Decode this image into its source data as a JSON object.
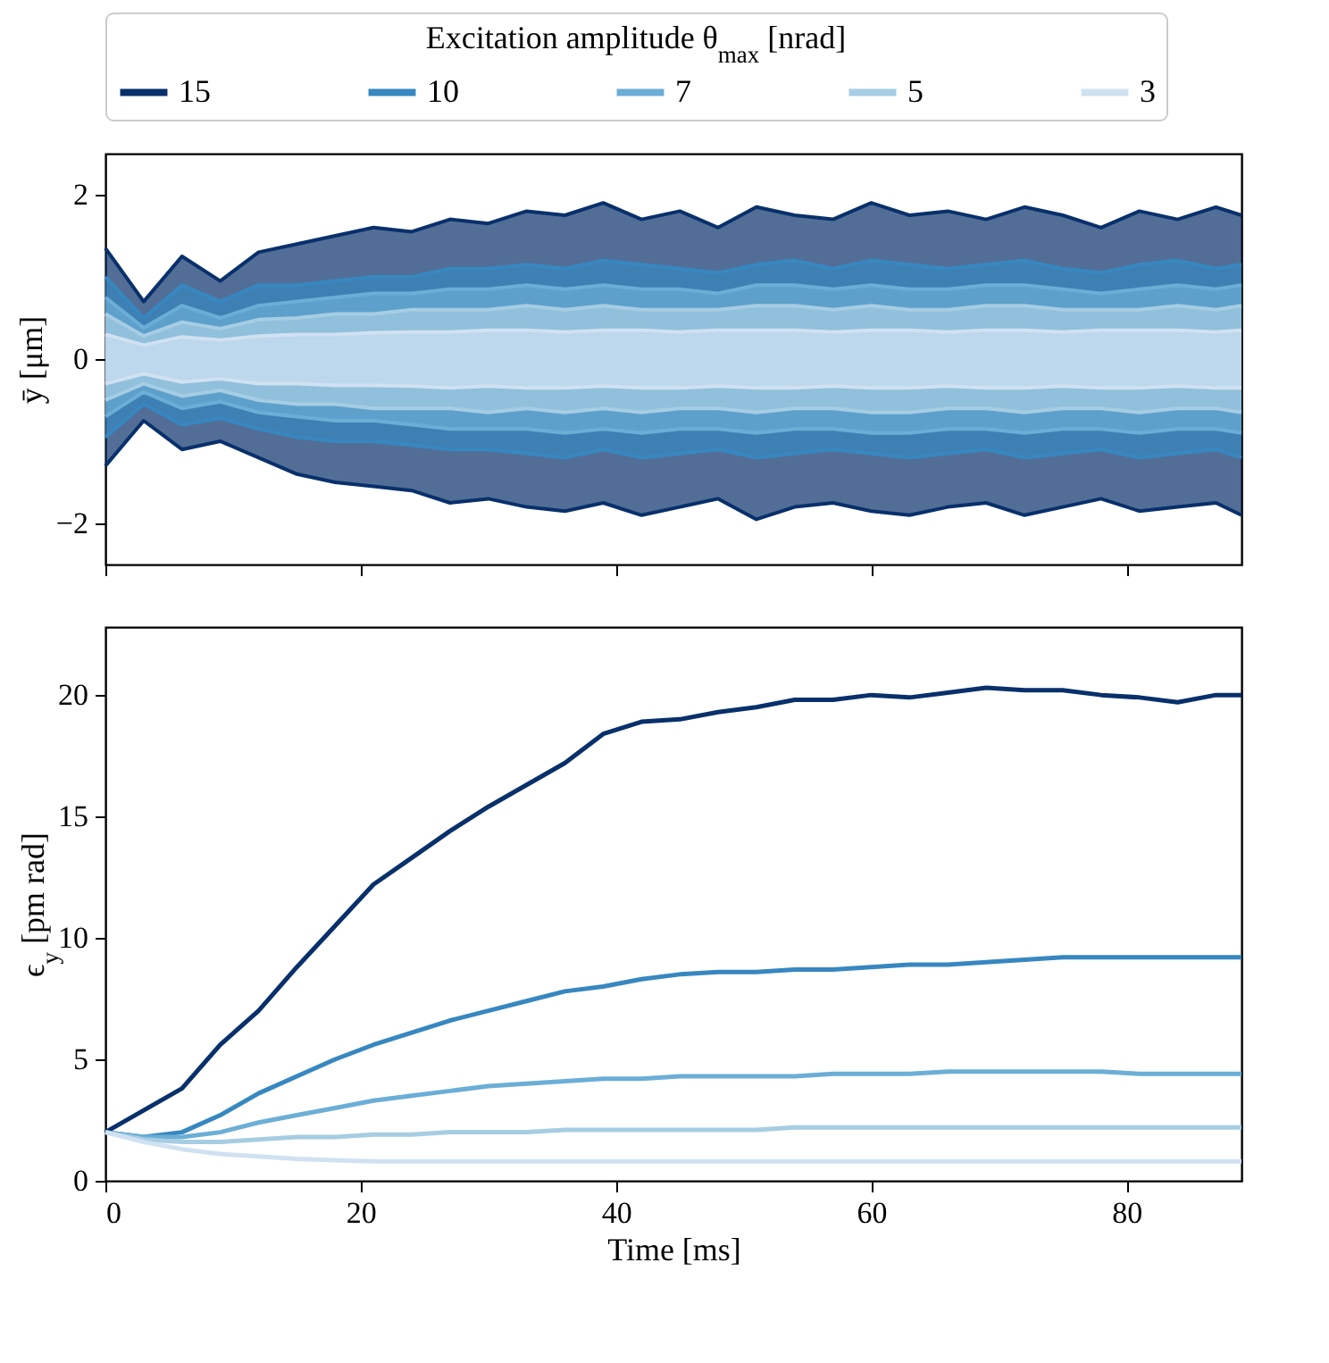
{
  "chart_data": [
    {
      "type": "area",
      "ylabel": "ȳ [μm]",
      "legend_title": "Excitation amplitude θ$_{max}$ [nrad]",
      "legend": "top",
      "grid": false,
      "tick_labels": "y",
      "x": [
        0,
        3,
        6,
        9,
        12,
        15,
        18,
        21,
        24,
        27,
        30,
        33,
        36,
        39,
        42,
        45,
        48,
        51,
        54,
        57,
        60,
        63,
        66,
        69,
        72,
        75,
        78,
        81,
        84,
        87,
        89
      ],
      "xlim": [
        0,
        89
      ],
      "xticks": [
        0,
        20,
        40,
        60,
        80
      ],
      "ylim": [
        -2.5,
        2.5
      ],
      "yticks": [
        -2,
        0,
        2
      ],
      "series": [
        {
          "name": "15",
          "color": "#08306b",
          "values": [
            1.35,
            0.7,
            1.25,
            0.95,
            1.3,
            1.4,
            1.5,
            1.6,
            1.55,
            1.7,
            1.65,
            1.8,
            1.75,
            1.9,
            1.7,
            1.8,
            1.6,
            1.85,
            1.75,
            1.7,
            1.9,
            1.75,
            1.8,
            1.7,
            1.85,
            1.75,
            1.6,
            1.8,
            1.7,
            1.85,
            1.75
          ]
        },
        {
          "color": "#08306b",
          "values": [
            -1.3,
            -0.75,
            -1.1,
            -1.0,
            -1.2,
            -1.4,
            -1.5,
            -1.55,
            -1.6,
            -1.75,
            -1.7,
            -1.8,
            -1.85,
            -1.75,
            -1.9,
            -1.8,
            -1.7,
            -1.95,
            -1.8,
            -1.75,
            -1.85,
            -1.9,
            -1.8,
            -1.75,
            -1.9,
            -1.8,
            -1.7,
            -1.85,
            -1.8,
            -1.75,
            -1.9
          ]
        },
        {
          "name": "10",
          "color": "#3787c0",
          "values": [
            1.0,
            0.5,
            0.9,
            0.7,
            0.9,
            0.9,
            0.95,
            1.0,
            1.0,
            1.1,
            1.1,
            1.15,
            1.1,
            1.2,
            1.15,
            1.1,
            1.05,
            1.15,
            1.2,
            1.1,
            1.2,
            1.15,
            1.1,
            1.15,
            1.2,
            1.1,
            1.05,
            1.15,
            1.2,
            1.1,
            1.15
          ]
        },
        {
          "color": "#3787c0",
          "values": [
            -0.95,
            -0.55,
            -0.8,
            -0.72,
            -0.85,
            -0.95,
            -1.0,
            -1.0,
            -1.05,
            -1.1,
            -1.1,
            -1.15,
            -1.2,
            -1.1,
            -1.2,
            -1.15,
            -1.1,
            -1.2,
            -1.15,
            -1.1,
            -1.15,
            -1.2,
            -1.15,
            -1.1,
            -1.2,
            -1.15,
            -1.1,
            -1.2,
            -1.15,
            -1.1,
            -1.2
          ]
        },
        {
          "name": "7",
          "color": "#6baed6",
          "values": [
            0.75,
            0.38,
            0.65,
            0.5,
            0.65,
            0.7,
            0.75,
            0.8,
            0.8,
            0.85,
            0.85,
            0.9,
            0.85,
            0.9,
            0.85,
            0.85,
            0.8,
            0.9,
            0.9,
            0.85,
            0.9,
            0.85,
            0.85,
            0.9,
            0.9,
            0.85,
            0.8,
            0.85,
            0.9,
            0.85,
            0.9
          ]
        },
        {
          "color": "#6baed6",
          "values": [
            -0.7,
            -0.4,
            -0.6,
            -0.52,
            -0.65,
            -0.7,
            -0.75,
            -0.75,
            -0.8,
            -0.85,
            -0.85,
            -0.85,
            -0.9,
            -0.85,
            -0.9,
            -0.85,
            -0.85,
            -0.9,
            -0.85,
            -0.85,
            -0.9,
            -0.9,
            -0.85,
            -0.85,
            -0.9,
            -0.85,
            -0.85,
            -0.9,
            -0.85,
            -0.85,
            -0.9
          ]
        },
        {
          "name": "5",
          "color": "#a6cde3",
          "values": [
            0.55,
            0.28,
            0.45,
            0.37,
            0.48,
            0.5,
            0.55,
            0.55,
            0.6,
            0.6,
            0.6,
            0.65,
            0.6,
            0.65,
            0.6,
            0.6,
            0.6,
            0.65,
            0.65,
            0.6,
            0.65,
            0.6,
            0.6,
            0.65,
            0.65,
            0.6,
            0.6,
            0.6,
            0.65,
            0.6,
            0.65
          ]
        },
        {
          "color": "#a6cde3",
          "values": [
            -0.5,
            -0.3,
            -0.45,
            -0.38,
            -0.5,
            -0.55,
            -0.55,
            -0.6,
            -0.6,
            -0.6,
            -0.65,
            -0.6,
            -0.65,
            -0.6,
            -0.65,
            -0.6,
            -0.6,
            -0.65,
            -0.6,
            -0.6,
            -0.65,
            -0.65,
            -0.6,
            -0.6,
            -0.65,
            -0.6,
            -0.6,
            -0.65,
            -0.6,
            -0.6,
            -0.65
          ]
        },
        {
          "name": "3",
          "color": "#d0e1f2",
          "values": [
            0.3,
            0.17,
            0.27,
            0.23,
            0.28,
            0.3,
            0.3,
            0.32,
            0.33,
            0.33,
            0.35,
            0.35,
            0.33,
            0.35,
            0.35,
            0.33,
            0.35,
            0.35,
            0.35,
            0.33,
            0.35,
            0.35,
            0.33,
            0.35,
            0.35,
            0.33,
            0.35,
            0.35,
            0.35,
            0.33,
            0.35
          ]
        },
        {
          "color": "#d0e1f2",
          "values": [
            -0.3,
            -0.18,
            -0.28,
            -0.24,
            -0.3,
            -0.3,
            -0.32,
            -0.32,
            -0.33,
            -0.35,
            -0.33,
            -0.35,
            -0.35,
            -0.33,
            -0.35,
            -0.35,
            -0.33,
            -0.35,
            -0.35,
            -0.33,
            -0.35,
            -0.35,
            -0.33,
            -0.35,
            -0.35,
            -0.33,
            -0.35,
            -0.35,
            -0.33,
            -0.35,
            -0.35
          ]
        }
      ]
    },
    {
      "type": "line",
      "xlabel": "Time [ms]",
      "ylabel": "ϵ$_{y}$ [pm rad]",
      "grid": false,
      "x": [
        0,
        3,
        6,
        9,
        12,
        15,
        18,
        21,
        24,
        27,
        30,
        33,
        36,
        39,
        42,
        45,
        48,
        51,
        54,
        57,
        60,
        63,
        66,
        69,
        72,
        75,
        78,
        81,
        84,
        87,
        89
      ],
      "xlim": [
        0,
        89
      ],
      "xticks": [
        0,
        20,
        40,
        60,
        80
      ],
      "ylim": [
        0,
        22.8
      ],
      "yticks": [
        0,
        5,
        10,
        15,
        20
      ],
      "series": [
        {
          "color": "#08306b",
          "values": [
            2.0,
            2.9,
            3.8,
            5.6,
            7.0,
            8.8,
            10.5,
            12.2,
            13.3,
            14.4,
            15.4,
            16.3,
            17.2,
            18.4,
            18.9,
            19.0,
            19.3,
            19.5,
            19.8,
            19.8,
            20.0,
            19.9,
            20.1,
            20.3,
            20.2,
            20.2,
            20.0,
            19.9,
            19.7,
            20.0,
            20.0
          ]
        },
        {
          "color": "#3787c0",
          "values": [
            2.0,
            1.8,
            2.0,
            2.7,
            3.6,
            4.3,
            5.0,
            5.6,
            6.1,
            6.6,
            7.0,
            7.4,
            7.8,
            8.0,
            8.3,
            8.5,
            8.6,
            8.6,
            8.7,
            8.7,
            8.8,
            8.9,
            8.9,
            9.0,
            9.1,
            9.2,
            9.2,
            9.2,
            9.2,
            9.2,
            9.2
          ]
        },
        {
          "color": "#6baed6",
          "values": [
            2.0,
            1.8,
            1.8,
            2.0,
            2.4,
            2.7,
            3.0,
            3.3,
            3.5,
            3.7,
            3.9,
            4.0,
            4.1,
            4.2,
            4.2,
            4.3,
            4.3,
            4.3,
            4.3,
            4.4,
            4.4,
            4.4,
            4.5,
            4.5,
            4.5,
            4.5,
            4.5,
            4.4,
            4.4,
            4.4,
            4.4
          ]
        },
        {
          "color": "#a6cde3",
          "values": [
            2.0,
            1.7,
            1.6,
            1.6,
            1.7,
            1.8,
            1.8,
            1.9,
            1.9,
            2.0,
            2.0,
            2.0,
            2.1,
            2.1,
            2.1,
            2.1,
            2.1,
            2.1,
            2.2,
            2.2,
            2.2,
            2.2,
            2.2,
            2.2,
            2.2,
            2.2,
            2.2,
            2.2,
            2.2,
            2.2,
            2.2
          ]
        },
        {
          "color": "#d0e1f2",
          "values": [
            2.0,
            1.6,
            1.3,
            1.1,
            1.0,
            0.9,
            0.85,
            0.8,
            0.8,
            0.8,
            0.8,
            0.8,
            0.8,
            0.8,
            0.8,
            0.8,
            0.8,
            0.8,
            0.8,
            0.8,
            0.8,
            0.8,
            0.8,
            0.8,
            0.8,
            0.8,
            0.8,
            0.8,
            0.8,
            0.8,
            0.8
          ]
        }
      ]
    }
  ]
}
